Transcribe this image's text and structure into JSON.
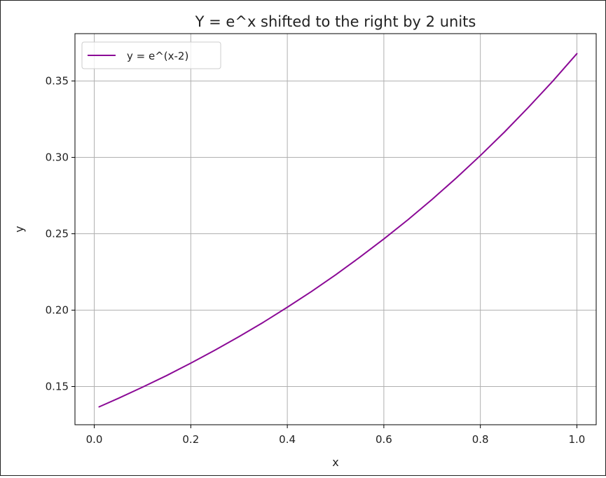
{
  "chart_data": {
    "type": "line",
    "title": "Y = e^x shifted to the right by 2 units",
    "xlabel": "x",
    "ylabel": "y",
    "xlim": [
      -0.04,
      1.04
    ],
    "ylim": [
      0.125,
      0.381
    ],
    "xticks": [
      0.0,
      0.2,
      0.4,
      0.6,
      0.8,
      1.0
    ],
    "xtick_labels": [
      "0.0",
      "0.2",
      "0.4",
      "0.6",
      "0.8",
      "1.0"
    ],
    "yticks": [
      0.15,
      0.2,
      0.25,
      0.3,
      0.35
    ],
    "ytick_labels": [
      "0.15",
      "0.20",
      "0.25",
      "0.30",
      "0.35"
    ],
    "grid": true,
    "legend_position": "top-left",
    "series": [
      {
        "name": "y = e^(x-2)",
        "color": "#8b0a96",
        "x": [
          0.01,
          0.05,
          0.1,
          0.15,
          0.2,
          0.25,
          0.3,
          0.35,
          0.4,
          0.45,
          0.5,
          0.55,
          0.6,
          0.65,
          0.7,
          0.75,
          0.8,
          0.85,
          0.9,
          0.95,
          1.0
        ],
        "y": [
          0.1367,
          0.1423,
          0.1496,
          0.1572,
          0.1653,
          0.1738,
          0.1827,
          0.192,
          0.2019,
          0.2122,
          0.2231,
          0.2346,
          0.2466,
          0.2592,
          0.2725,
          0.2865,
          0.3012,
          0.3166,
          0.3329,
          0.3499,
          0.3679
        ]
      }
    ]
  }
}
